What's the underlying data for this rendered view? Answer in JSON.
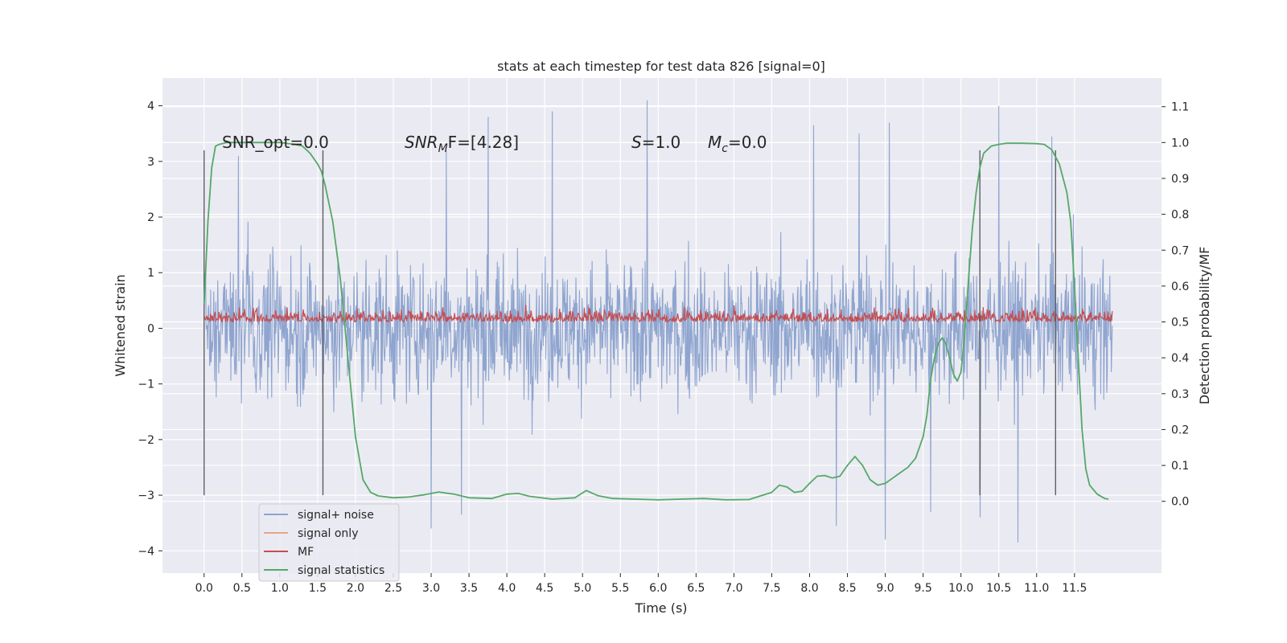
{
  "chart_data": {
    "type": "line",
    "title": "stats at each timestep for test data 826 [signal=0]",
    "xlabel": "Time (s)",
    "ylabel": "Whitened strain",
    "y2label": "Detection probability/MF",
    "xlim": [
      -0.55,
      12.65
    ],
    "ylim": [
      -4.4,
      4.5
    ],
    "y2lim": [
      -0.2,
      1.18
    ],
    "x_ticks": [
      "0.0",
      "0.5",
      "1.0",
      "1.5",
      "2.0",
      "2.5",
      "3.0",
      "3.5",
      "4.0",
      "4.5",
      "5.0",
      "5.5",
      "6.0",
      "6.5",
      "7.0",
      "7.5",
      "8.0",
      "8.5",
      "9.0",
      "9.5",
      "10.0",
      "10.5",
      "11.0",
      "11.5"
    ],
    "y_ticks": [
      "4",
      "3",
      "2",
      "1",
      "0",
      "−1",
      "−2",
      "−3",
      "−4"
    ],
    "y2_ticks": [
      "1.1",
      "1.0",
      "0.9",
      "0.8",
      "0.7",
      "0.6",
      "0.5",
      "0.4",
      "0.3",
      "0.2",
      "0.1",
      "0.0"
    ],
    "grid": true,
    "legend_position": "lower-left",
    "annotations": {
      "snr_opt": "SNR_opt=0.0",
      "snr_mf_main": "SNR",
      "snr_mf_sub": "M",
      "snr_mf_rest": "F=[4.28]",
      "s_main": "S",
      "s_rest": "=1.0",
      "mc_main": "M",
      "mc_sub": "c",
      "mc_rest": "=0.0"
    },
    "vertical_markers_x": [
      0.0,
      1.57,
      10.25,
      11.25
    ],
    "series": [
      {
        "name": "signal+ noise",
        "color": "#8fa5cf",
        "x_range": [
          0.0,
          12.0
        ],
        "amplitude_typical": 1.1,
        "min": -3.9,
        "max": 4.1,
        "peaks": [
          [
            0.45,
            3.1
          ],
          [
            3.2,
            3.2
          ],
          [
            3.75,
            3.8
          ],
          [
            4.6,
            3.9
          ],
          [
            5.85,
            4.1
          ],
          [
            8.05,
            3.65
          ],
          [
            8.65,
            3.5
          ],
          [
            9.05,
            3.7
          ],
          [
            10.5,
            4.0
          ],
          [
            11.2,
            3.45
          ]
        ],
        "troughs": [
          [
            3.0,
            -3.6
          ],
          [
            3.4,
            -3.35
          ],
          [
            8.35,
            -3.55
          ],
          [
            9.0,
            -3.8
          ],
          [
            9.6,
            -3.3
          ],
          [
            10.25,
            -3.4
          ],
          [
            10.75,
            -3.85
          ]
        ]
      },
      {
        "name": "signal only",
        "color": "#e8a58a",
        "values": []
      },
      {
        "name": "MF",
        "color": "#c44e52",
        "x_range": [
          0.0,
          12.0
        ],
        "baseline_y2": 0.5,
        "max_y2": 0.565,
        "typical_y2": 0.535
      },
      {
        "name": "signal statistics",
        "color": "#55a868",
        "axis": "right",
        "x": [
          0.0,
          0.05,
          0.1,
          0.15,
          0.2,
          0.3,
          0.5,
          0.8,
          1.0,
          1.2,
          1.3,
          1.4,
          1.5,
          1.55,
          1.6,
          1.7,
          1.8,
          1.9,
          2.0,
          2.1,
          2.2,
          2.3,
          2.5,
          2.7,
          2.9,
          3.1,
          3.3,
          3.5,
          3.8,
          4.0,
          4.15,
          4.3,
          4.6,
          4.9,
          5.05,
          5.2,
          5.4,
          5.7,
          6.0,
          6.3,
          6.6,
          6.9,
          7.2,
          7.5,
          7.6,
          7.7,
          7.8,
          7.9,
          8.0,
          8.1,
          8.2,
          8.3,
          8.4,
          8.5,
          8.6,
          8.7,
          8.8,
          8.9,
          9.0,
          9.1,
          9.2,
          9.3,
          9.4,
          9.5,
          9.55,
          9.6,
          9.65,
          9.7,
          9.75,
          9.8,
          9.85,
          9.9,
          9.95,
          10.0,
          10.05,
          10.1,
          10.15,
          10.2,
          10.25,
          10.3,
          10.4,
          10.5,
          10.6,
          10.8,
          11.0,
          11.1,
          11.2,
          11.3,
          11.4,
          11.45,
          11.5,
          11.55,
          11.6,
          11.65,
          11.7,
          11.8,
          11.9,
          11.95
        ],
        "values": [
          0.55,
          0.78,
          0.93,
          0.99,
          0.995,
          1.0,
          1.0,
          1.0,
          1.0,
          0.995,
          0.99,
          0.97,
          0.94,
          0.92,
          0.88,
          0.78,
          0.62,
          0.4,
          0.18,
          0.06,
          0.025,
          0.015,
          0.01,
          0.012,
          0.018,
          0.026,
          0.02,
          0.01,
          0.008,
          0.02,
          0.022,
          0.014,
          0.006,
          0.01,
          0.03,
          0.016,
          0.008,
          0.006,
          0.004,
          0.006,
          0.008,
          0.004,
          0.005,
          0.025,
          0.045,
          0.04,
          0.025,
          0.028,
          0.05,
          0.07,
          0.072,
          0.065,
          0.07,
          0.1,
          0.125,
          0.1,
          0.06,
          0.045,
          0.05,
          0.065,
          0.08,
          0.095,
          0.12,
          0.18,
          0.24,
          0.34,
          0.4,
          0.44,
          0.455,
          0.44,
          0.4,
          0.355,
          0.335,
          0.36,
          0.47,
          0.62,
          0.76,
          0.86,
          0.93,
          0.97,
          0.99,
          0.995,
          0.998,
          0.998,
          0.997,
          0.995,
          0.98,
          0.94,
          0.86,
          0.78,
          0.6,
          0.4,
          0.2,
          0.09,
          0.045,
          0.02,
          0.008,
          0.006
        ]
      }
    ]
  }
}
